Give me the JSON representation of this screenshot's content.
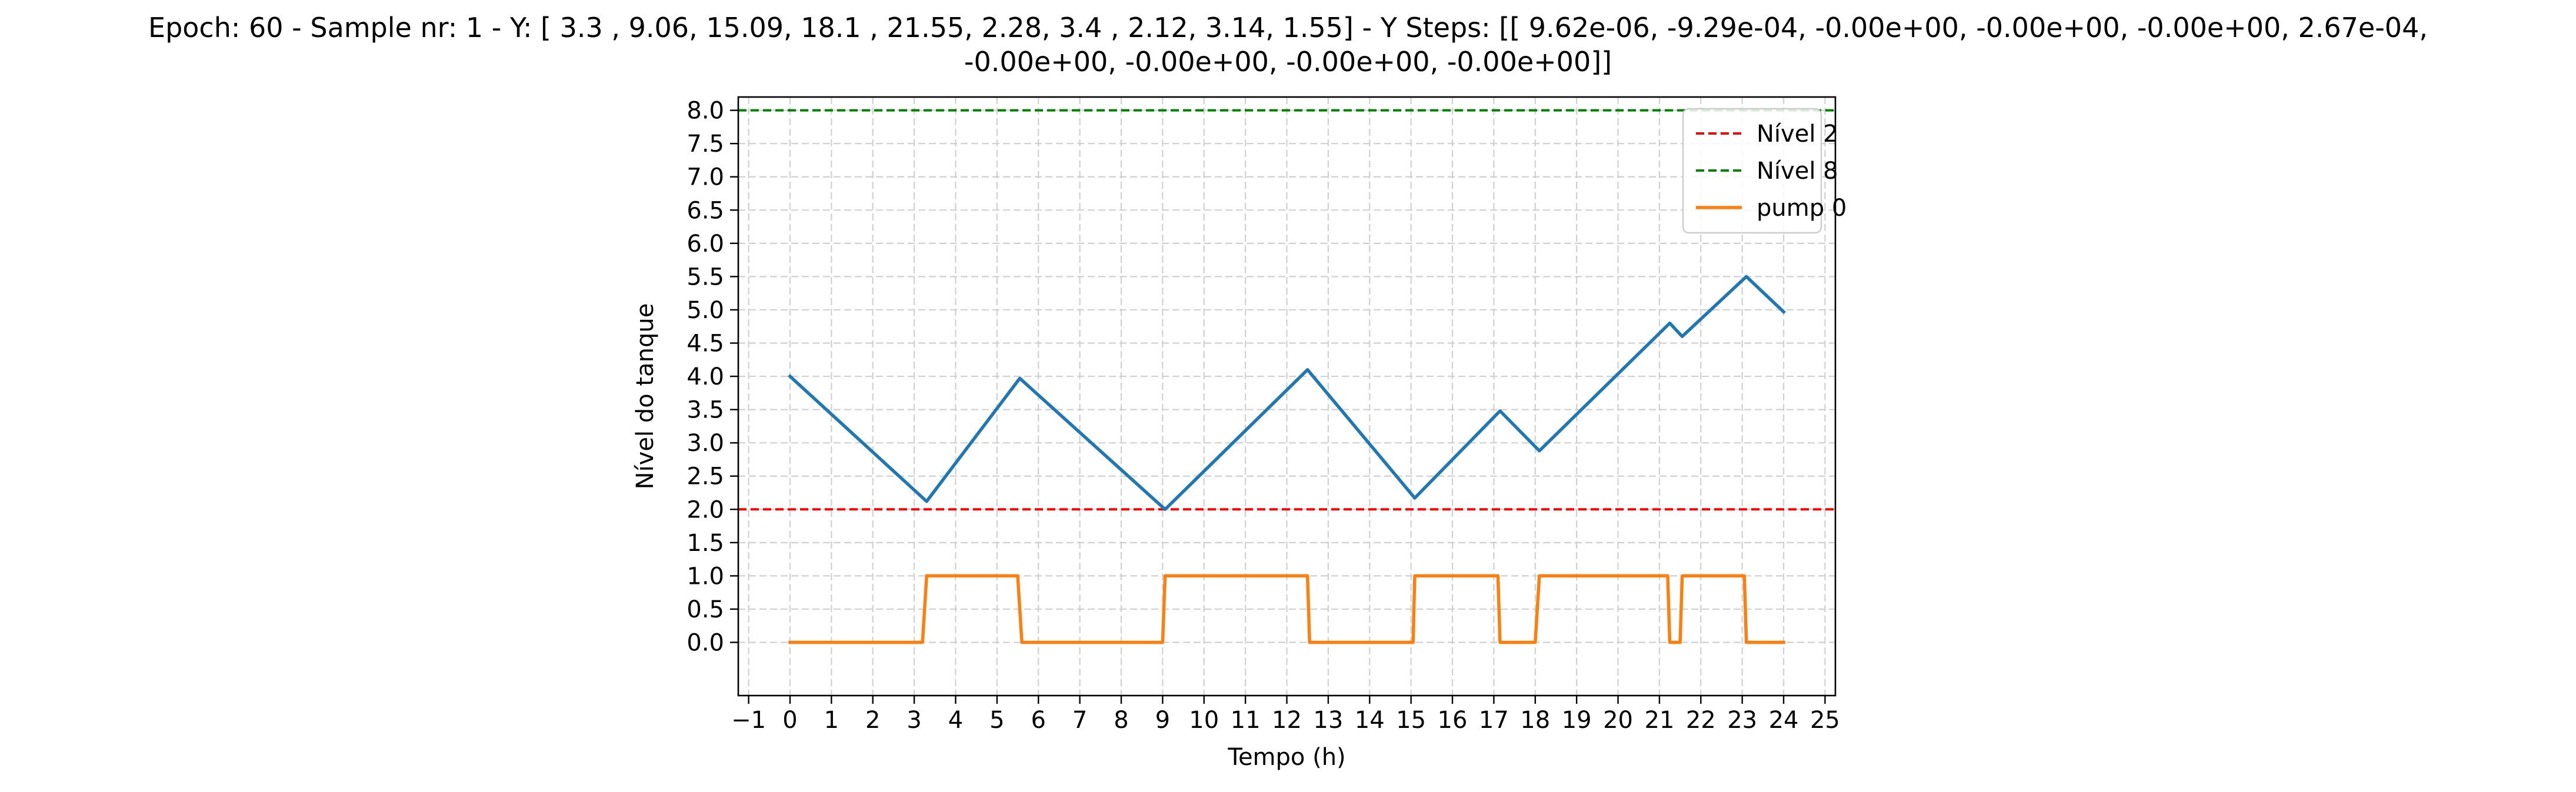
{
  "chart_data": {
    "type": "line",
    "title": "Epoch: 60 - Sample nr: 1 - Y: [ 3.3 ,  9.06, 15.09, 18.1 , 21.55,  2.28,  3.4 ,  2.12,  3.14,  1.55] - Y Steps: [[ 9.62e-06, -9.29e-04, -0.00e+00, -0.00e+00, -0.00e+00,  2.67e-04,\n  -0.00e+00, -0.00e+00, -0.00e+00, -0.00e+00]]",
    "xlabel": "Tempo (h)",
    "ylabel": "Nível do tanque",
    "xlim": [
      -1.25,
      25.25
    ],
    "ylim": [
      -0.8,
      8.2
    ],
    "x_ticks": [
      -1,
      0,
      1,
      2,
      3,
      4,
      5,
      6,
      7,
      8,
      9,
      10,
      11,
      12,
      13,
      14,
      15,
      16,
      17,
      18,
      19,
      20,
      21,
      22,
      23,
      24,
      25
    ],
    "x_tick_labels": [
      "−1",
      "0",
      "1",
      "2",
      "3",
      "4",
      "5",
      "6",
      "7",
      "8",
      "9",
      "10",
      "11",
      "12",
      "13",
      "14",
      "15",
      "16",
      "17",
      "18",
      "19",
      "20",
      "21",
      "22",
      "23",
      "24",
      "25"
    ],
    "y_ticks": [
      0,
      0.5,
      1,
      1.5,
      2,
      2.5,
      3,
      3.5,
      4,
      4.5,
      5,
      5.5,
      6,
      6.5,
      7,
      7.5,
      8
    ],
    "y_tick_labels": [
      "0.0",
      "0.5",
      "1.0",
      "1.5",
      "2.0",
      "2.5",
      "3.0",
      "3.5",
      "4.0",
      "4.5",
      "5.0",
      "5.5",
      "6.0",
      "6.5",
      "7.0",
      "7.5",
      "8.0"
    ],
    "grid": true,
    "legend_position": "top-right",
    "horizontal_lines": [
      {
        "name": "Nível 2",
        "y": 2,
        "color": "#ff0000",
        "style": "dashed"
      },
      {
        "name": "Nível 8",
        "y": 8,
        "color": "#008000",
        "style": "dashed"
      }
    ],
    "series": [
      {
        "name": "",
        "color": "#1f77b4",
        "points": [
          [
            0,
            4.0
          ],
          [
            3.3,
            2.12
          ],
          [
            5.55,
            3.97
          ],
          [
            9.06,
            2.0
          ],
          [
            12.5,
            4.1
          ],
          [
            15.09,
            2.17
          ],
          [
            17.15,
            3.48
          ],
          [
            18.1,
            2.88
          ],
          [
            21.25,
            4.8
          ],
          [
            21.55,
            4.6
          ],
          [
            23.1,
            5.5
          ],
          [
            24,
            4.97
          ]
        ],
        "in_legend": false
      },
      {
        "name": "pump 0",
        "color": "#ff7f0e",
        "points": [
          [
            0,
            0
          ],
          [
            3.2,
            0
          ],
          [
            3.3,
            1
          ],
          [
            5.5,
            1
          ],
          [
            5.6,
            0
          ],
          [
            9.0,
            0
          ],
          [
            9.06,
            1
          ],
          [
            12.5,
            1
          ],
          [
            12.55,
            0
          ],
          [
            15.05,
            0
          ],
          [
            15.09,
            1
          ],
          [
            17.1,
            1
          ],
          [
            17.15,
            0
          ],
          [
            18.0,
            0
          ],
          [
            18.1,
            1
          ],
          [
            21.2,
            1
          ],
          [
            21.25,
            0
          ],
          [
            21.5,
            0
          ],
          [
            21.55,
            1
          ],
          [
            23.05,
            1
          ],
          [
            23.1,
            0
          ],
          [
            24,
            0
          ]
        ],
        "in_legend": true
      }
    ]
  }
}
